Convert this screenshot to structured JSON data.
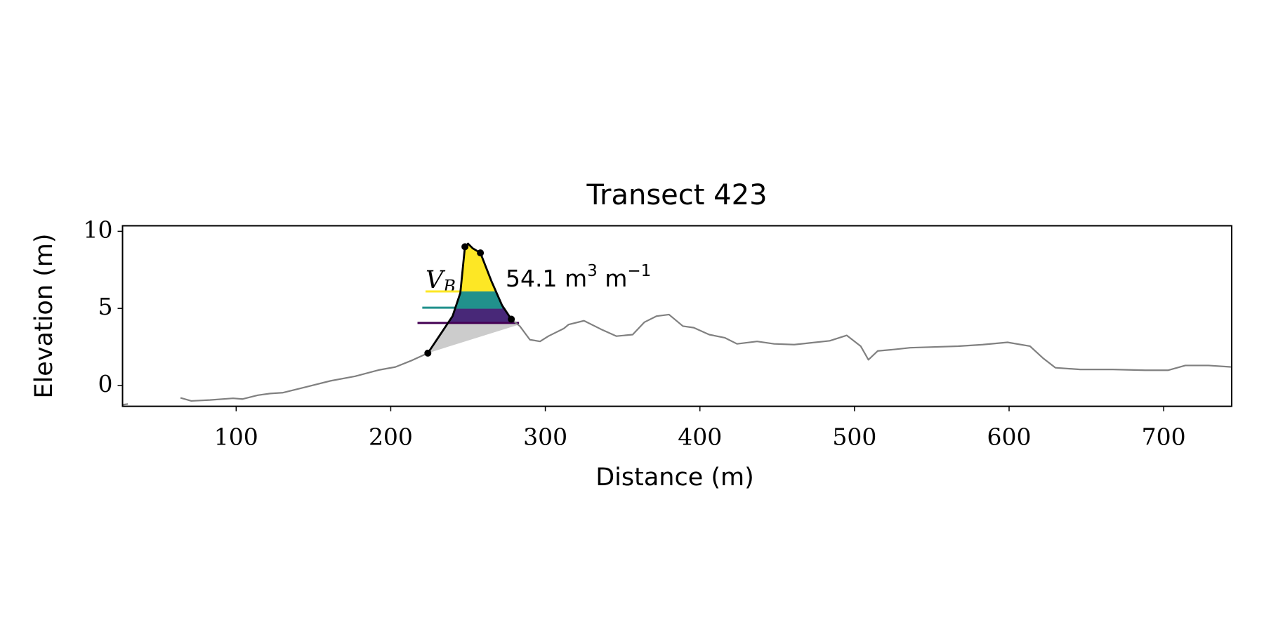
{
  "chart_data": {
    "type": "line",
    "title": "Transect 423",
    "xlabel": "Distance (m)",
    "ylabel": "Elevation (m)",
    "xlim": [
      26.5,
      744
    ],
    "ylim": [
      -1.35,
      10.36
    ],
    "xticks": [
      100,
      200,
      300,
      400,
      500,
      600,
      700
    ],
    "yticks": [
      0,
      5,
      10
    ],
    "series": [
      {
        "color": "#808080",
        "x": [
          26.5,
          30,
          47,
          64,
          71,
          83,
          98,
          104,
          114,
          122,
          130,
          145,
          161,
          177,
          192,
          203,
          213,
          224,
          234,
          240,
          245,
          248,
          250,
          253,
          258,
          265,
          272,
          278,
          283.5,
          290,
          296.6,
          302,
          312,
          315,
          325,
          336,
          346,
          356.5,
          364,
          372,
          380,
          389,
          396,
          406,
          416,
          424,
          437,
          448,
          461,
          471,
          484,
          495,
          504,
          509,
          515,
          526,
          536,
          552,
          567,
          583,
          599,
          613.5,
          622,
          630,
          646,
          667,
          688,
          703,
          714,
          729,
          744
        ],
        "values": [
          -1.25,
          -1.2,
          null,
          -0.8,
          -1.0,
          -0.94,
          -0.83,
          -0.88,
          -0.63,
          -0.52,
          -0.47,
          -0.1,
          0.3,
          0.6,
          1.0,
          1.2,
          1.6,
          2.1,
          3.6,
          4.5,
          6.0,
          9.0,
          9.2,
          8.9,
          8.6,
          6.8,
          5.2,
          4.3,
          3.85,
          2.97,
          2.86,
          3.2,
          3.7,
          3.95,
          4.2,
          3.65,
          3.2,
          3.3,
          4.1,
          4.5,
          4.6,
          3.85,
          3.75,
          3.3,
          3.1,
          2.7,
          2.86,
          2.7,
          2.65,
          2.76,
          2.9,
          3.25,
          2.55,
          1.67,
          2.24,
          2.34,
          2.45,
          2.5,
          2.55,
          2.65,
          2.8,
          2.55,
          1.77,
          1.15,
          1.04,
          1.04,
          0.99,
          0.99,
          1.3,
          1.3,
          1.2
        ]
      }
    ],
    "dune": {
      "color": "#000000",
      "x": [
        224,
        234,
        240,
        245,
        248,
        250,
        253,
        258,
        265,
        272,
        278
      ],
      "values": [
        2.1,
        3.6,
        4.5,
        6.0,
        9.0,
        9.2,
        8.9,
        8.6,
        6.8,
        5.2,
        4.3
      ]
    },
    "markers": {
      "x": [
        224,
        248,
        258,
        278
      ],
      "values": [
        2.1,
        9.0,
        8.6,
        4.3
      ]
    },
    "base_end": {
      "x": 283,
      "y": 3.95
    },
    "base_color": "#cccccc",
    "levels": [
      {
        "color": "#440154",
        "value": 4.06,
        "x_start": 217.3,
        "x_end": 283
      },
      {
        "color": "#21918c",
        "value": 5.05,
        "x_start": 220.4,
        "x_end": 272
      },
      {
        "color": "#fde725",
        "value": 6.1,
        "x_start": 222.5,
        "x_end": 245
      }
    ],
    "fill_colors": [
      "#482878",
      "#21918c",
      "#fde725"
    ],
    "annotation": {
      "symbol": "V",
      "symbol_sub": "B",
      "volume": "54.1 m",
      "sup1": "3",
      "unit2": " m",
      "sup2": "−1"
    }
  }
}
